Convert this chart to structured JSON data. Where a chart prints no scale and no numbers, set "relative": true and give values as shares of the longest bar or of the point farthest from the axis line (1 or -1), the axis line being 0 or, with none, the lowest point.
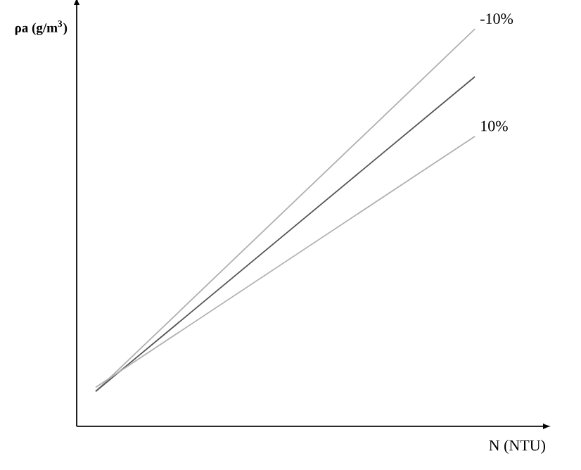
{
  "chart_data": {
    "type": "line",
    "relative": true,
    "xlabel": "N (NTU)",
    "ylabel": "ρa (g/m$^{3}$)",
    "categories": [
      null,
      null
    ],
    "series": [
      {
        "name": "-10%",
        "color": "#b0b0b0",
        "values": [
          0.088,
          1
        ]
      },
      {
        "color": "#555555",
        "values": [
          0.088,
          0.88
        ]
      },
      {
        "name": "10%",
        "color": "#b0b0b0",
        "values": [
          0.098,
          0.73
        ]
      }
    ]
  }
}
